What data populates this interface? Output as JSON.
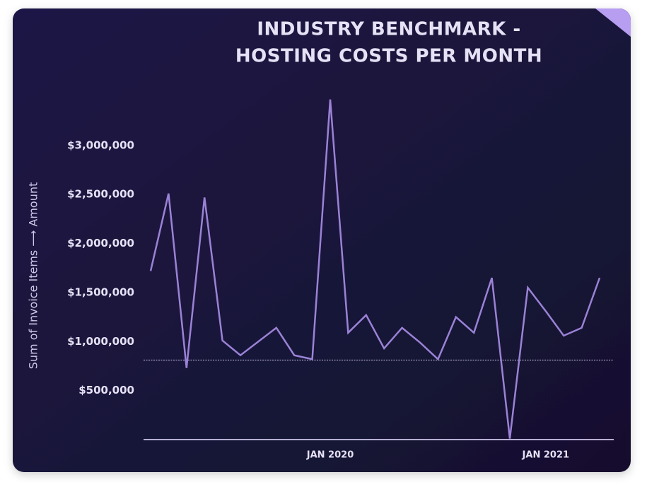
{
  "chart_data": {
    "type": "line",
    "title": [
      "INDUSTRY BENCHMARK -",
      "HOSTING COSTS PER MONTH"
    ],
    "y_label": "Sum of Invoice Items ⟶ Amount",
    "categories": [
      null,
      null,
      null,
      null,
      null,
      null,
      null,
      null,
      null,
      null,
      "JAN 2020",
      null,
      null,
      null,
      null,
      null,
      null,
      null,
      null,
      null,
      null,
      null,
      "JAN 2021",
      null,
      null,
      null
    ],
    "series": [
      {
        "color": "#9b82d6",
        "values": [
          1720000,
          2510000,
          730000,
          2470000,
          1010000,
          860000,
          1000000,
          1140000,
          860000,
          820000,
          3470000,
          1090000,
          1270000,
          930000,
          1140000,
          990000,
          820000,
          1250000,
          1090000,
          1650000,
          10000,
          1550000,
          1310000,
          1060000,
          1140000,
          1650000
        ]
      }
    ],
    "benchmark_line": 810000,
    "ylim": [
      0,
      3500000
    ],
    "yticks": [
      {
        "value": 500000,
        "label": "$500,000"
      },
      {
        "value": 1000000,
        "label": "$1,000,000"
      },
      {
        "value": 1500000,
        "label": "$1,500,000"
      },
      {
        "value": 2000000,
        "label": "$2,000,000"
      },
      {
        "value": 2500000,
        "label": "$2,500,000"
      },
      {
        "value": 3000000,
        "label": "$3,000,000"
      }
    ]
  }
}
